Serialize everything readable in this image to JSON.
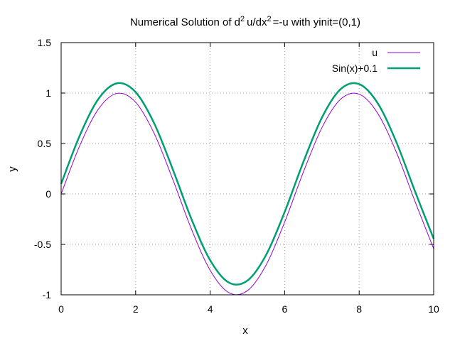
{
  "chart_data": {
    "type": "line",
    "title": {
      "prefix": "Numerical Solution of d",
      "sup1": "2",
      "middle": "u/dx",
      "sup2": "2",
      "suffix": "=-u with yinit=(0,1)"
    },
    "xlabel": "x",
    "ylabel": "y",
    "xlim": [
      0,
      10
    ],
    "ylim": [
      -1,
      1.5
    ],
    "x_ticks": [
      0,
      2,
      4,
      6,
      8,
      10
    ],
    "x_tick_labels": [
      "0",
      "2",
      "4",
      "6",
      "8",
      "10"
    ],
    "y_ticks": [
      -1,
      -0.5,
      0,
      0.5,
      1,
      1.5
    ],
    "y_tick_labels": [
      "-1",
      "-0.5",
      "0",
      "0.5",
      "1",
      "1.5"
    ],
    "grid": true,
    "legend_position": "top-right",
    "x": [
      0,
      0.5,
      1,
      1.5,
      2,
      2.5,
      3,
      3.5,
      4,
      4.5,
      5,
      5.5,
      6,
      6.5,
      7,
      7.5,
      8,
      8.5,
      9,
      9.5,
      10
    ],
    "series": [
      {
        "name": "u",
        "color": "#9400d3",
        "values": [
          0,
          0.479,
          0.841,
          0.997,
          0.909,
          0.598,
          0.141,
          -0.351,
          -0.757,
          -0.978,
          -0.959,
          -0.706,
          -0.279,
          0.215,
          0.657,
          0.938,
          0.989,
          0.798,
          0.412,
          -0.075,
          -0.544
        ]
      },
      {
        "name": "Sin(x)+0.1",
        "color": "#009e73",
        "values": [
          0.1,
          0.579,
          0.941,
          1.097,
          1.009,
          0.698,
          0.241,
          -0.251,
          -0.657,
          -0.878,
          -0.859,
          -0.606,
          -0.179,
          0.315,
          0.757,
          1.038,
          1.089,
          0.898,
          0.512,
          0.025,
          -0.444
        ]
      }
    ]
  }
}
